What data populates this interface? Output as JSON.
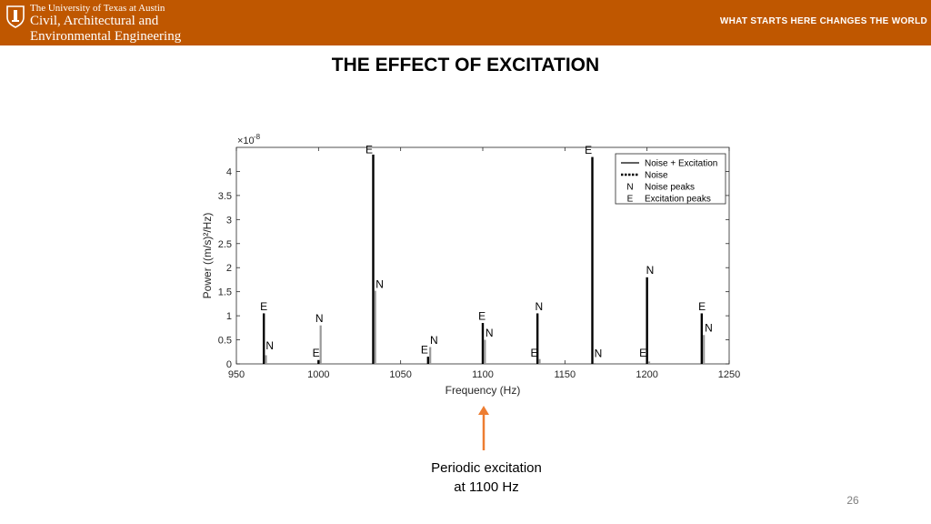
{
  "header": {
    "university": "The University of Texas at Austin",
    "department_line1": "Civil, Architectural and",
    "department_line2": "Environmental Engineering",
    "slogan": "WHAT STARTS HERE CHANGES THE WORLD",
    "color": "#bf5700"
  },
  "title": "THE EFFECT OF EXCITATION",
  "caption": {
    "line1": "Periodic excitation",
    "line2": "at 1100 Hz",
    "arrow_color": "#ed7d31"
  },
  "page_number": "26",
  "chart_data": {
    "type": "bar",
    "xlabel": "Frequency (Hz)",
    "ylabel": "Power ((m/s)²/Hz)",
    "y_multiplier": "×10",
    "y_multiplier_exp": "-8",
    "xlim": [
      950,
      1250
    ],
    "ylim": [
      0,
      4.5
    ],
    "xticks": [
      950,
      1000,
      1050,
      1100,
      1150,
      1200,
      1250
    ],
    "yticks": [
      0,
      0.5,
      1,
      1.5,
      2,
      2.5,
      3,
      3.5,
      4
    ],
    "grid": false,
    "legend_position": "top-right",
    "legend": [
      {
        "label": "Noise + Excitation",
        "symbol": "line"
      },
      {
        "label": "Noise",
        "symbol": "dotted"
      },
      {
        "label": "Noise peaks",
        "symbol": "N"
      },
      {
        "label": "Excitation peaks",
        "symbol": "E"
      }
    ],
    "series": [
      {
        "key": "noise_excitation",
        "color": "#000000",
        "x": [
          966.7,
          1000,
          1033.3,
          1066.7,
          1100,
          1133.3,
          1166.7,
          1200,
          1233.3
        ],
        "values": [
          1.05,
          0.08,
          4.35,
          0.15,
          0.85,
          1.05,
          4.3,
          1.8,
          1.05
        ]
      },
      {
        "key": "noise",
        "color": "#999999",
        "x": [
          968,
          1001.3,
          1034.5,
          1068,
          1101.3,
          1134.6,
          1168,
          1201.3,
          1234.6
        ],
        "values": [
          0.18,
          0.8,
          1.52,
          0.35,
          0.5,
          0.1,
          0.02,
          0.05,
          0.6
        ]
      }
    ],
    "annotations": [
      {
        "text": "E",
        "x": 966.7,
        "y": 1.12
      },
      {
        "text": "N",
        "x": 970.3,
        "y": 0.3
      },
      {
        "text": "N",
        "x": 1000.5,
        "y": 0.87
      },
      {
        "text": "E",
        "x": 998.5,
        "y": 0.15
      },
      {
        "text": "E",
        "x": 1030.8,
        "y": 4.38
      },
      {
        "text": "N",
        "x": 1037.2,
        "y": 1.58
      },
      {
        "text": "N",
        "x": 1070.3,
        "y": 0.42
      },
      {
        "text": "E",
        "x": 1064.5,
        "y": 0.22
      },
      {
        "text": "E",
        "x": 1099.5,
        "y": 0.92
      },
      {
        "text": "N",
        "x": 1104,
        "y": 0.57
      },
      {
        "text": "N",
        "x": 1134.2,
        "y": 1.12
      },
      {
        "text": "E",
        "x": 1131.3,
        "y": 0.15
      },
      {
        "text": "E",
        "x": 1164.3,
        "y": 4.37
      },
      {
        "text": "N",
        "x": 1170.3,
        "y": 0.14
      },
      {
        "text": "N",
        "x": 1201.8,
        "y": 1.87
      },
      {
        "text": "E",
        "x": 1197.5,
        "y": 0.15
      },
      {
        "text": "E",
        "x": 1233.5,
        "y": 1.12
      },
      {
        "text": "N",
        "x": 1237.5,
        "y": 0.67
      }
    ]
  }
}
